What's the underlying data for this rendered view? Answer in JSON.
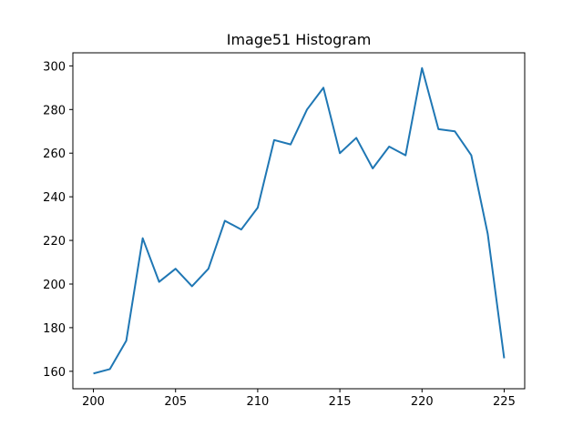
{
  "chart_data": {
    "type": "line",
    "title": "Image51 Histogram",
    "xlabel": "",
    "ylabel": "",
    "xlim": [
      198.75,
      226.25
    ],
    "ylim": [
      152,
      306
    ],
    "grid": false,
    "x_ticks": [
      200,
      205,
      210,
      215,
      220,
      225
    ],
    "y_ticks": [
      160,
      180,
      200,
      220,
      240,
      260,
      280,
      300
    ],
    "series": [
      {
        "color": "#1f77b4",
        "x": [
          200,
          201,
          202,
          203,
          204,
          205,
          206,
          207,
          208,
          209,
          210,
          211,
          212,
          213,
          214,
          215,
          216,
          217,
          218,
          219,
          220,
          221,
          222,
          223,
          224,
          225
        ],
        "y": [
          159,
          161,
          174,
          221,
          201,
          207,
          199,
          207,
          229,
          225,
          235,
          266,
          264,
          280,
          290,
          260,
          267,
          253,
          263,
          259,
          299,
          271,
          270,
          259,
          223,
          166
        ]
      }
    ]
  }
}
